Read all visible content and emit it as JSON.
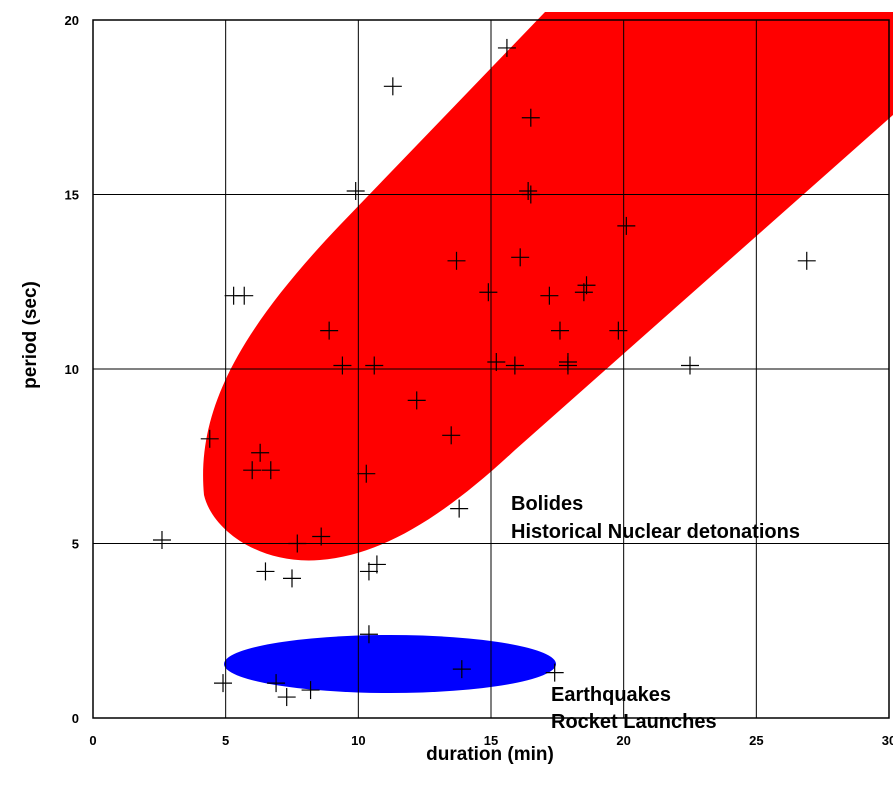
{
  "chart_data": {
    "type": "scatter",
    "title": "",
    "xlabel": "duration (min)",
    "ylabel": "period (sec)",
    "xlim": [
      0,
      30
    ],
    "ylim": [
      0,
      20
    ],
    "xticks": [
      0,
      5,
      10,
      15,
      20,
      25,
      30
    ],
    "yticks": [
      0,
      5,
      10,
      15,
      20
    ],
    "grid": true,
    "points": [
      {
        "x": 2.6,
        "y": 5.1
      },
      {
        "x": 4.4,
        "y": 8.0
      },
      {
        "x": 4.9,
        "y": 1.0
      },
      {
        "x": 5.3,
        "y": 12.1
      },
      {
        "x": 5.7,
        "y": 12.1
      },
      {
        "x": 6.0,
        "y": 7.1
      },
      {
        "x": 6.3,
        "y": 7.6
      },
      {
        "x": 6.5,
        "y": 4.2
      },
      {
        "x": 6.7,
        "y": 7.1
      },
      {
        "x": 6.9,
        "y": 1.0
      },
      {
        "x": 7.3,
        "y": 0.6
      },
      {
        "x": 7.5,
        "y": 4.0
      },
      {
        "x": 7.7,
        "y": 5.0
      },
      {
        "x": 8.2,
        "y": 0.8
      },
      {
        "x": 8.6,
        "y": 5.2
      },
      {
        "x": 8.9,
        "y": 11.1
      },
      {
        "x": 9.4,
        "y": 10.1
      },
      {
        "x": 9.9,
        "y": 15.1
      },
      {
        "x": 10.3,
        "y": 7.0
      },
      {
        "x": 10.4,
        "y": 4.2
      },
      {
        "x": 10.4,
        "y": 2.4
      },
      {
        "x": 10.6,
        "y": 10.1
      },
      {
        "x": 10.7,
        "y": 4.4
      },
      {
        "x": 11.3,
        "y": 18.1
      },
      {
        "x": 12.2,
        "y": 9.1
      },
      {
        "x": 13.5,
        "y": 8.1
      },
      {
        "x": 13.7,
        "y": 13.1
      },
      {
        "x": 13.8,
        "y": 6.0
      },
      {
        "x": 13.9,
        "y": 1.4
      },
      {
        "x": 14.9,
        "y": 12.2
      },
      {
        "x": 15.2,
        "y": 10.2
      },
      {
        "x": 15.6,
        "y": 19.2
      },
      {
        "x": 15.9,
        "y": 10.1
      },
      {
        "x": 16.1,
        "y": 13.2
      },
      {
        "x": 16.4,
        "y": 15.1
      },
      {
        "x": 16.5,
        "y": 15.0
      },
      {
        "x": 16.5,
        "y": 17.2
      },
      {
        "x": 17.2,
        "y": 12.1
      },
      {
        "x": 17.4,
        "y": 1.3
      },
      {
        "x": 17.6,
        "y": 11.1
      },
      {
        "x": 17.9,
        "y": 10.2
      },
      {
        "x": 17.9,
        "y": 10.1
      },
      {
        "x": 18.5,
        "y": 12.2
      },
      {
        "x": 18.6,
        "y": 12.4
      },
      {
        "x": 19.8,
        "y": 11.1
      },
      {
        "x": 20.1,
        "y": 14.1
      },
      {
        "x": 22.5,
        "y": 10.1
      },
      {
        "x": 26.9,
        "y": 13.1
      }
    ],
    "regions": [
      {
        "labels": [
          "Bolides",
          "Historical Nuclear detonations"
        ],
        "color": "#ff0000"
      },
      {
        "labels": [
          "Earthquakes",
          "Rocket Launches"
        ],
        "color": "#0000ff"
      }
    ]
  }
}
